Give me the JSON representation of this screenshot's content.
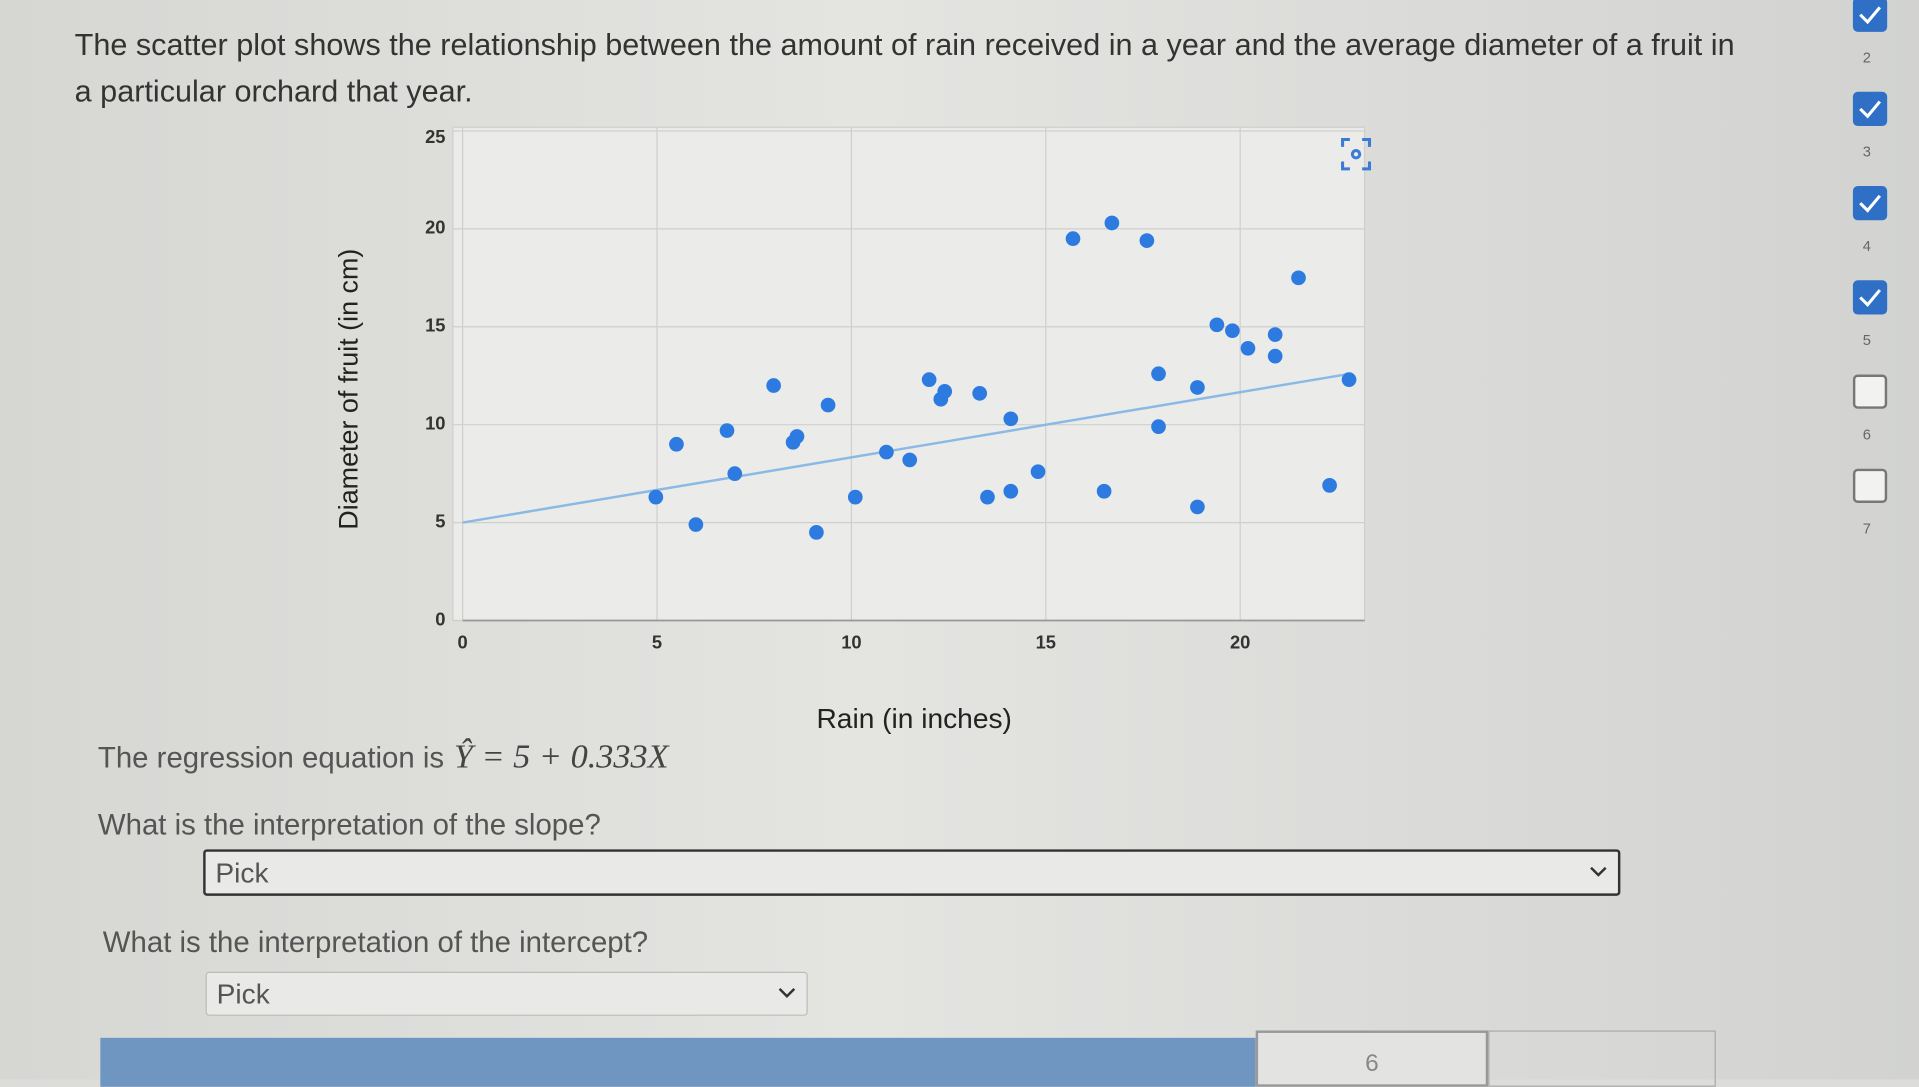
{
  "intro": "The scatter plot shows the relationship between the amount of rain received in a year and the average diameter of a fruit in a particular orchard that year.",
  "chart_data": {
    "type": "scatter",
    "x_label": "Rain (in inches)",
    "y_label": "Diameter of fruit (in cm)",
    "x": [
      4.97,
      5.5,
      6.0,
      6.8,
      7.0,
      8.0,
      8.5,
      8.6,
      9.1,
      9.4,
      10.1,
      10.9,
      11.5,
      12.0,
      12.3,
      12.4,
      13.3,
      13.5,
      14.1,
      14.1,
      14.8,
      15.7,
      16.5,
      16.7,
      17.6,
      17.9,
      17.9,
      18.9,
      18.9,
      19.4,
      19.8,
      20.2,
      20.9,
      20.9,
      21.5,
      22.3,
      22.8
    ],
    "values": [
      6.3,
      9.0,
      4.9,
      9.7,
      7.5,
      12.0,
      9.1,
      9.4,
      4.5,
      11.0,
      6.3,
      8.6,
      8.2,
      12.3,
      11.3,
      11.7,
      11.6,
      6.3,
      10.3,
      6.6,
      7.6,
      19.5,
      6.6,
      20.3,
      19.4,
      12.6,
      9.9,
      11.9,
      5.8,
      15.1,
      14.8,
      13.9,
      14.6,
      13.5,
      17.5,
      6.9,
      12.3
    ],
    "color": "#2d7be0",
    "xlim": [
      0,
      23.2
    ],
    "ylim": [
      0,
      25
    ],
    "xticks": [
      0,
      5,
      10,
      15,
      20
    ],
    "yticks": [
      0,
      5,
      10,
      15,
      20,
      25
    ],
    "grid": true,
    "regression": {
      "intercept": 5,
      "slope": 0.333,
      "color": "#8bb9e6"
    }
  },
  "equation": {
    "prefix": "The regression equation is",
    "formula": "Ŷ = 5 + 0.333X"
  },
  "questions": [
    {
      "prompt": "What is the interpretation of the slope?",
      "select": "Pick"
    },
    {
      "prompt": "What is the interpretation of the intercept?",
      "select": "Pick"
    }
  ],
  "nav": {
    "checked": [
      true,
      true,
      true,
      true,
      false,
      false
    ],
    "numbers": [
      "2",
      "3",
      "4",
      "5",
      "6",
      "7"
    ]
  },
  "footer": {
    "box_text": "6"
  }
}
